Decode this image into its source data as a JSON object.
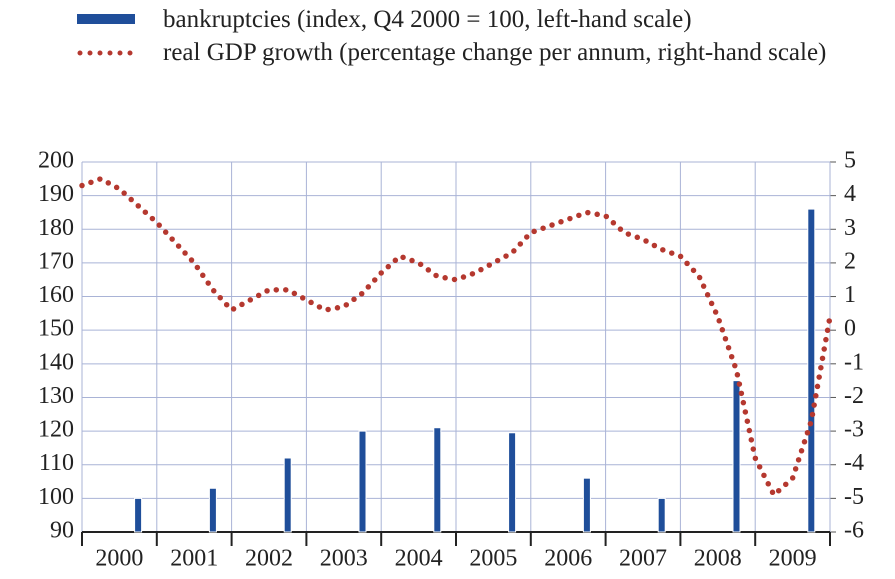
{
  "chart_data": {
    "type": "bar_line",
    "series": [
      {
        "name": "bankruptcies (index, Q4 2000 = 100, left-hand scale)",
        "type": "bar",
        "color": "#1f4e9a",
        "x": [
          2000.75,
          2001.75,
          2002.75,
          2003.75,
          2004.75,
          2005.75,
          2006.75,
          2007.75,
          2008.75,
          2009.75
        ],
        "values": [
          100,
          103,
          112,
          120,
          121,
          119.5,
          106,
          100,
          135,
          186
        ]
      },
      {
        "name": "real GDP growth (percentage change per annum, right-hand scale)",
        "type": "line",
        "axis": "y2",
        "color": "#b5382f",
        "x": [
          2000,
          2000.25,
          2000.5,
          2000.75,
          2001,
          2001.25,
          2001.5,
          2001.75,
          2002,
          2002.25,
          2002.5,
          2002.75,
          2003,
          2003.25,
          2003.5,
          2003.75,
          2004,
          2004.25,
          2004.5,
          2004.75,
          2005,
          2005.25,
          2005.5,
          2005.75,
          2006,
          2006.25,
          2006.5,
          2006.75,
          2007,
          2007.25,
          2007.5,
          2007.75,
          2008,
          2008.25,
          2008.5,
          2008.75,
          2009,
          2009.25,
          2009.5,
          2009.75,
          2010
        ],
        "values": [
          4.3,
          4.5,
          4.2,
          3.7,
          3.2,
          2.6,
          2.0,
          1.2,
          0.6,
          0.9,
          1.2,
          1.2,
          0.9,
          0.6,
          0.7,
          1.1,
          1.7,
          2.2,
          2.0,
          1.6,
          1.5,
          1.7,
          2.0,
          2.3,
          2.9,
          3.1,
          3.3,
          3.5,
          3.4,
          2.9,
          2.7,
          2.4,
          2.2,
          1.6,
          0.4,
          -1.2,
          -3.8,
          -4.9,
          -4.4,
          -2.7,
          0.4
        ]
      }
    ],
    "xlim": [
      2000,
      2010
    ],
    "xticks": [
      2000,
      2001,
      2002,
      2003,
      2004,
      2005,
      2006,
      2007,
      2008,
      2009,
      2010
    ],
    "x_labels": [
      {
        "value": 2000.5,
        "label": "2000"
      },
      {
        "value": 2001.5,
        "label": "2001"
      },
      {
        "value": 2002.5,
        "label": "2002"
      },
      {
        "value": 2003.5,
        "label": "2003"
      },
      {
        "value": 2004.5,
        "label": "2004"
      },
      {
        "value": 2005.5,
        "label": "2005"
      },
      {
        "value": 2006.5,
        "label": "2006"
      },
      {
        "value": 2007.5,
        "label": "2007"
      },
      {
        "value": 2008.5,
        "label": "2008"
      },
      {
        "value": 2009.5,
        "label": "2009"
      }
    ],
    "ylim": [
      90,
      200
    ],
    "yticks": [
      90,
      100,
      110,
      120,
      130,
      140,
      150,
      160,
      170,
      180,
      190,
      200
    ],
    "y2lim": [
      -6,
      5
    ],
    "y2ticks": [
      -6,
      -5,
      -4,
      -3,
      -2,
      -1,
      0,
      1,
      2,
      3,
      4,
      5
    ],
    "grid": true
  }
}
